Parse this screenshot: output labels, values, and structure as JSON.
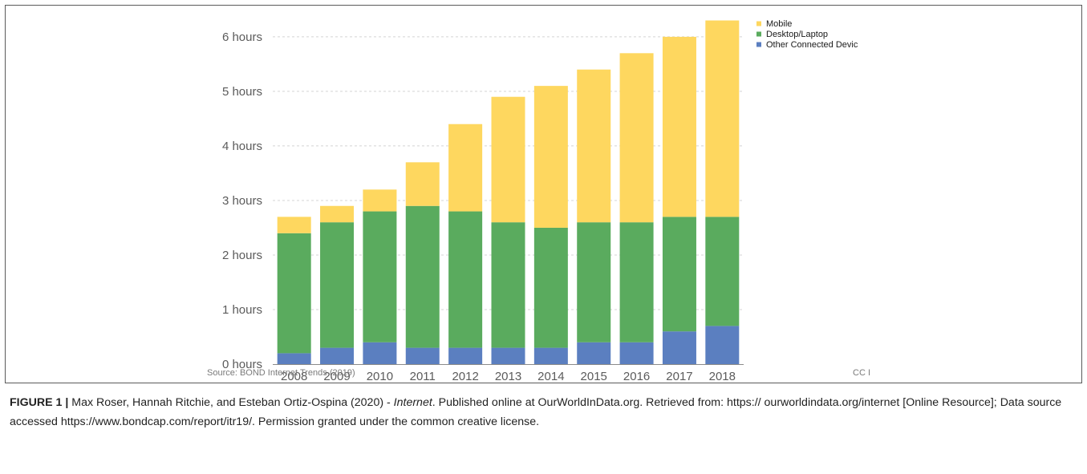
{
  "chart_data": {
    "type": "bar",
    "stacked": true,
    "categories": [
      "2008",
      "2009",
      "2010",
      "2011",
      "2012",
      "2013",
      "2014",
      "2015",
      "2016",
      "2017",
      "2018"
    ],
    "series": [
      {
        "name": "Other Connected Devic",
        "color": "#5b7fc0",
        "values": [
          0.2,
          0.3,
          0.4,
          0.3,
          0.3,
          0.3,
          0.3,
          0.4,
          0.4,
          0.6,
          0.7
        ]
      },
      {
        "name": "Desktop/Laptop",
        "color": "#5aab5e",
        "values": [
          2.2,
          2.3,
          2.4,
          2.6,
          2.5,
          2.3,
          2.2,
          2.2,
          2.2,
          2.1,
          2.0
        ]
      },
      {
        "name": "Mobile",
        "color": "#fed75f",
        "values": [
          0.3,
          0.3,
          0.4,
          0.8,
          1.6,
          2.3,
          2.6,
          2.8,
          3.1,
          3.3,
          3.6
        ]
      }
    ],
    "yticks": [
      {
        "value": 0,
        "label": "0 hours"
      },
      {
        "value": 1,
        "label": "1 hours"
      },
      {
        "value": 2,
        "label": "2 hours"
      },
      {
        "value": 3,
        "label": "3 hours"
      },
      {
        "value": 4,
        "label": "4 hours"
      },
      {
        "value": 5,
        "label": "5 hours"
      },
      {
        "value": 6,
        "label": "6 hours"
      }
    ],
    "ylim": [
      0,
      6.3
    ],
    "grid": true,
    "legend": {
      "position": "top-right",
      "entries": [
        "Mobile",
        "Desktop/Laptop",
        "Other Connected Devic"
      ]
    },
    "source": "Source: BOND Internet Trends (2019)",
    "license": "CC I"
  },
  "caption": {
    "label": "FIGURE 1 |",
    "text_before": " Max Roser, Hannah Ritchie, and Esteban Ortiz-Ospina (2020) - ",
    "italic": "Internet",
    "text_after": ". Published online at OurWorldInData.org. Retrieved from: https:// ourworldindata.org/internet [Online Resource]; Data source accessed https://www.bondcap.com/report/itr19/. Permission granted under the common creative license."
  }
}
